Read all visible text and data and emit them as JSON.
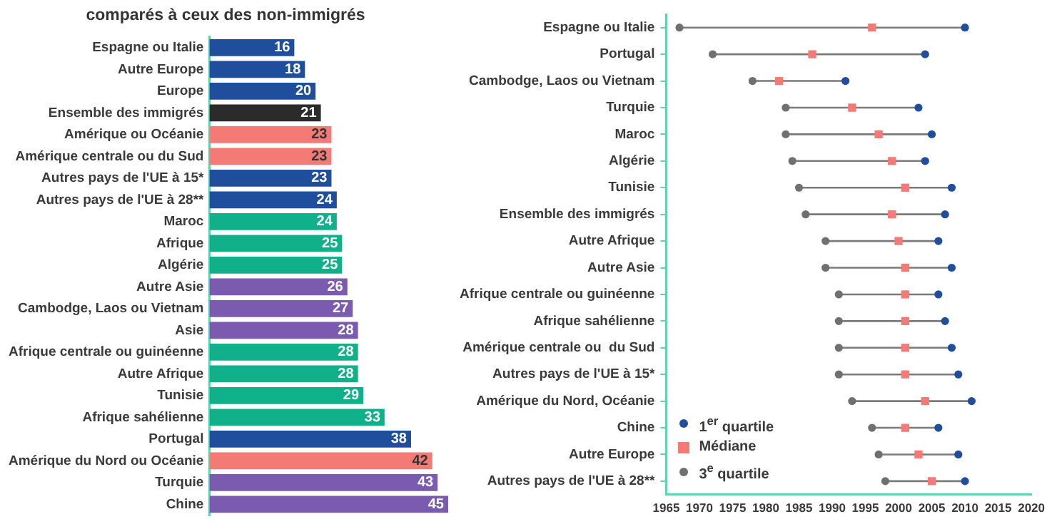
{
  "chart_data": [
    {
      "type": "bar",
      "orientation": "horizontal",
      "title": "comparés à ceux des non-immigrés",
      "categories": [
        "Espagne ou Italie",
        "Autre Europe",
        "Europe",
        "Ensemble des immigrés",
        "Amérique ou Océanie",
        "Amérique centrale ou du Sud",
        "Autres pays de l'UE à 15*",
        "Autres pays de l'UE à 28**",
        "Maroc",
        "Afrique",
        "Algérie",
        "Autre Asie",
        "Cambodge, Laos ou Vietnam",
        "Asie",
        "Afrique centrale ou guinéenne",
        "Autre Afrique",
        "Tunisie",
        "Afrique sahélienne",
        "Portugal",
        "Amérique du Nord ou Océanie",
        "Turquie",
        "Chine"
      ],
      "values": [
        16,
        18,
        20,
        21,
        23,
        23,
        23,
        24,
        24,
        25,
        25,
        26,
        27,
        28,
        28,
        28,
        29,
        33,
        38,
        42,
        43,
        45
      ],
      "colors": [
        "#1f4e9c",
        "#1f4e9c",
        "#1f4e9c",
        "#2b2b2b",
        "#f47a76",
        "#f47a76",
        "#1f4e9c",
        "#1f4e9c",
        "#10b08a",
        "#10b08a",
        "#10b08a",
        "#7b5bb0",
        "#7b5bb0",
        "#7b5bb0",
        "#10b08a",
        "#10b08a",
        "#10b08a",
        "#10b08a",
        "#1f4e9c",
        "#f47a76",
        "#7b5bb0",
        "#7b5bb0"
      ],
      "data_labels": true,
      "tick_labels": "y",
      "grid": false,
      "legend": false
    },
    {
      "type": "scatter",
      "orientation": "horizontal",
      "categories": [
        "Espagne ou Italie",
        "Portugal",
        "Cambodge, Laos ou Vietnam",
        "Turquie",
        "Maroc",
        "Algérie",
        "Tunisie",
        "Ensemble des immigrés",
        "Autre Afrique",
        "Autre Asie",
        "Afrique centrale ou guinéenne",
        "Afrique sahélienne",
        "Amérique centrale ou  du Sud",
        "Autres pays de l'UE à 15*",
        "Amérique du Nord, Océanie",
        "Chine",
        "Autre Europe",
        "Autres pays de l'UE à 28**"
      ],
      "series": [
        {
          "name": "1$^{er}$ quartile",
          "color": "#1f4e9c",
          "marker": "circle",
          "values": [
            2010,
            2004,
            1992,
            2003,
            2005,
            2004,
            2008,
            2007,
            2006,
            2008,
            2006,
            2007,
            2008,
            2009,
            2011,
            2006,
            2009,
            2010
          ]
        },
        {
          "name": "Médiane",
          "color": "#f47a76",
          "marker": "square",
          "values": [
            1996,
            1987,
            1982,
            1993,
            1997,
            1999,
            2001,
            1999,
            2000,
            2001,
            2001,
            2001,
            2001,
            2001,
            2004,
            2001,
            2003,
            2005
          ]
        },
        {
          "name": "3$^{e}$ quartile",
          "color": "#707070",
          "marker": "circle",
          "values": [
            1967,
            1972,
            1978,
            1983,
            1983,
            1984,
            1985,
            1986,
            1989,
            1989,
            1991,
            1991,
            1991,
            1991,
            1993,
            1996,
            1997,
            1998
          ]
        }
      ],
      "xlim": [
        1965,
        2020
      ],
      "xticks": [
        1965,
        1970,
        1975,
        1980,
        1985,
        1990,
        1995,
        2000,
        2005,
        2010,
        2015,
        2020
      ],
      "grid": false,
      "legend": "bottom left"
    }
  ]
}
